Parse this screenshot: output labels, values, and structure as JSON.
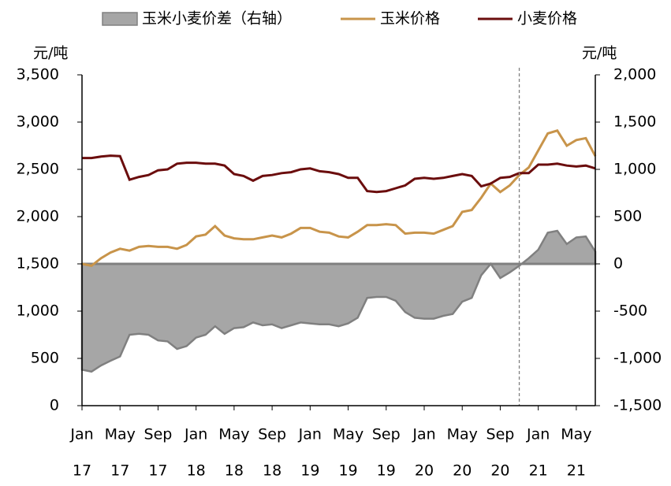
{
  "chart_data": {
    "type": "combo",
    "y_unit_label": "元/吨",
    "y2_unit_label": "元/吨",
    "x": [
      "2017-01",
      "2017-02",
      "2017-03",
      "2017-04",
      "2017-05",
      "2017-06",
      "2017-07",
      "2017-08",
      "2017-09",
      "2017-10",
      "2017-11",
      "2017-12",
      "2018-01",
      "2018-02",
      "2018-03",
      "2018-04",
      "2018-05",
      "2018-06",
      "2018-07",
      "2018-08",
      "2018-09",
      "2018-10",
      "2018-11",
      "2018-12",
      "2019-01",
      "2019-02",
      "2019-03",
      "2019-04",
      "2019-05",
      "2019-06",
      "2019-07",
      "2019-08",
      "2019-09",
      "2019-10",
      "2019-11",
      "2019-12",
      "2020-01",
      "2020-02",
      "2020-03",
      "2020-04",
      "2020-05",
      "2020-06",
      "2020-07",
      "2020-08",
      "2020-09",
      "2020-10",
      "2020-11",
      "2020-12",
      "2021-01",
      "2021-02",
      "2021-03",
      "2021-04",
      "2021-05",
      "2021-06",
      "2021-07"
    ],
    "xlim": [
      "2017-01",
      "2021-07"
    ],
    "xticks": [
      {
        "value": "2017-01",
        "label": "Jan",
        "year_label": "17"
      },
      {
        "value": "2017-05",
        "label": "May",
        "year_label": "17"
      },
      {
        "value": "2017-09",
        "label": "Sep",
        "year_label": "17"
      },
      {
        "value": "2018-01",
        "label": "Jan",
        "year_label": "18"
      },
      {
        "value": "2018-05",
        "label": "May",
        "year_label": "18"
      },
      {
        "value": "2018-09",
        "label": "Sep",
        "year_label": "18"
      },
      {
        "value": "2019-01",
        "label": "Jan",
        "year_label": "19"
      },
      {
        "value": "2019-05",
        "label": "May",
        "year_label": "19"
      },
      {
        "value": "2019-09",
        "label": "Sep",
        "year_label": "19"
      },
      {
        "value": "2020-01",
        "label": "Jan",
        "year_label": "20"
      },
      {
        "value": "2020-05",
        "label": "May",
        "year_label": "20"
      },
      {
        "value": "2020-09",
        "label": "Sep",
        "year_label": "20"
      },
      {
        "value": "2021-01",
        "label": "Jan",
        "year_label": "21"
      },
      {
        "value": "2021-05",
        "label": "May",
        "year_label": "21"
      }
    ],
    "ylim": [
      0,
      3500
    ],
    "yticks": [
      {
        "value": 3500,
        "label": "3,500"
      },
      {
        "value": 3000,
        "label": "3,000"
      },
      {
        "value": 2500,
        "label": "2,500"
      },
      {
        "value": 2000,
        "label": "2,000"
      },
      {
        "value": 1500,
        "label": "1,500"
      },
      {
        "value": 1000,
        "label": "1,000"
      },
      500,
      0
    ],
    "y2lim": [
      -1500,
      2000
    ],
    "y2ticks": [
      {
        "value": 2000,
        "label": "2,000"
      },
      {
        "value": 1500,
        "label": "1,500"
      },
      {
        "value": 1000,
        "label": "1,000"
      },
      500,
      0,
      -500,
      {
        "value": -1000,
        "label": "-1,000"
      },
      {
        "value": -1500,
        "label": "-1,500"
      }
    ],
    "vline_x": "2020-11",
    "series": [
      {
        "name": "玉米小麦价差（右轴）",
        "kind": "area",
        "axis": "y2",
        "color": "#a6a6a6",
        "edge_color": "#808080",
        "values": [
          -1120,
          -1140,
          -1075,
          -1025,
          -980,
          -750,
          -740,
          -750,
          -810,
          -820,
          -900,
          -870,
          -780,
          -750,
          -660,
          -740,
          -680,
          -670,
          -620,
          -650,
          -640,
          -680,
          -650,
          -620,
          -630,
          -640,
          -640,
          -660,
          -630,
          -570,
          -360,
          -350,
          -350,
          -390,
          -510,
          -570,
          -580,
          -580,
          -550,
          -530,
          -400,
          -360,
          -120,
          0,
          -150,
          -90,
          -20,
          60,
          150,
          330,
          350,
          210,
          280,
          290,
          130
        ]
      },
      {
        "name": "玉米价格",
        "kind": "line",
        "color": "#c8944a",
        "values": [
          1500,
          1480,
          1560,
          1620,
          1660,
          1640,
          1680,
          1690,
          1680,
          1680,
          1660,
          1700,
          1790,
          1810,
          1900,
          1800,
          1770,
          1760,
          1760,
          1780,
          1800,
          1780,
          1820,
          1880,
          1880,
          1840,
          1830,
          1790,
          1780,
          1840,
          1910,
          1910,
          1920,
          1910,
          1820,
          1830,
          1830,
          1820,
          1860,
          1900,
          2050,
          2070,
          2200,
          2350,
          2260,
          2330,
          2440,
          2520,
          2700,
          2880,
          2910,
          2750,
          2810,
          2830,
          2640
        ]
      },
      {
        "name": "小麦价格",
        "kind": "line",
        "color": "#6b0d0d",
        "values": [
          2620,
          2620,
          2635,
          2645,
          2640,
          2390,
          2420,
          2440,
          2490,
          2500,
          2560,
          2570,
          2570,
          2560,
          2560,
          2540,
          2450,
          2430,
          2380,
          2430,
          2440,
          2460,
          2470,
          2500,
          2510,
          2480,
          2470,
          2450,
          2410,
          2410,
          2270,
          2260,
          2270,
          2300,
          2330,
          2400,
          2410,
          2400,
          2410,
          2430,
          2450,
          2430,
          2320,
          2350,
          2410,
          2420,
          2460,
          2460,
          2550,
          2550,
          2560,
          2540,
          2530,
          2540,
          2510
        ]
      }
    ]
  }
}
